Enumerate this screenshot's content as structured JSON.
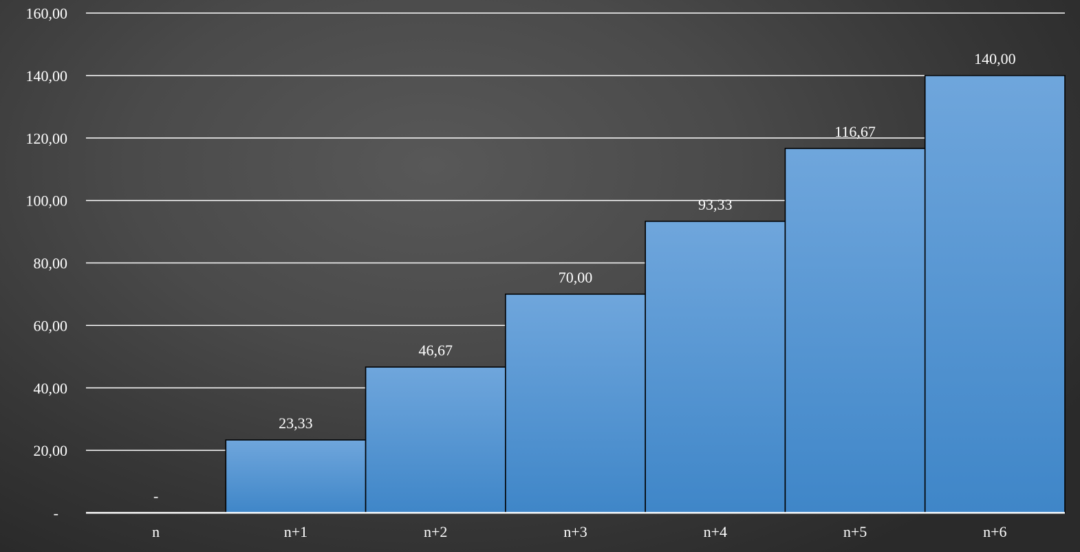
{
  "chart_data": {
    "type": "bar",
    "categories": [
      "n",
      "n+1",
      "n+2",
      "n+3",
      "n+4",
      "n+5",
      "n+6"
    ],
    "values": [
      0,
      23.33,
      46.67,
      70.0,
      93.33,
      116.67,
      140.0
    ],
    "data_labels": [
      "-",
      "23,33",
      "46,67",
      "70,00",
      "93,33",
      "116,67",
      "140,00"
    ],
    "y_ticks": [
      0,
      20,
      40,
      60,
      80,
      100,
      120,
      140,
      160
    ],
    "y_tick_labels": [
      "-",
      "20,00",
      "40,00",
      "60,00",
      "80,00",
      "100,00",
      "120,00",
      "140,00",
      "160,00"
    ],
    "ylim": [
      0,
      160
    ],
    "title": "",
    "xlabel": "",
    "ylabel": "",
    "grid": true,
    "legend": "none",
    "colors": {
      "bar_top": "#6fa6dc",
      "bar_bottom": "#3f86c8",
      "bar_stroke": "#000000",
      "gridline": "#ffffff",
      "text": "#ffffff"
    }
  }
}
